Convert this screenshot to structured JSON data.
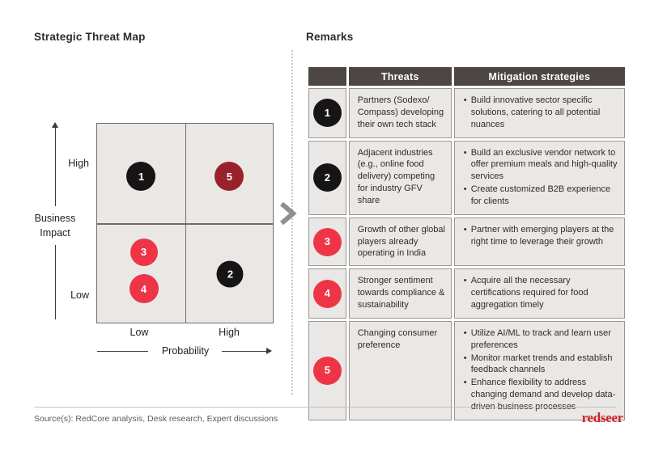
{
  "titles": {
    "left": "Strategic Threat Map",
    "right": "Remarks"
  },
  "matrix": {
    "y_axis": {
      "label": "Business Impact",
      "tick_high": "High",
      "tick_low": "Low"
    },
    "x_axis": {
      "label": "Probability",
      "tick_low": "Low",
      "tick_high": "High"
    },
    "points": [
      {
        "label": "1",
        "color": "#161414",
        "impact": "High",
        "probability": "Low",
        "cx_pct": 25.1,
        "cy_pct": 26.6,
        "size": 36
      },
      {
        "label": "5",
        "color": "#99212b",
        "impact": "High",
        "probability": "High",
        "cx_pct": 75.3,
        "cy_pct": 26.6,
        "size": 36
      },
      {
        "label": "3",
        "color": "#ee3547",
        "impact": "Low",
        "probability": "Low",
        "cx_pct": 26.5,
        "cy_pct": 64.5,
        "size": 34
      },
      {
        "label": "4",
        "color": "#ee3547",
        "impact": "Low",
        "probability": "Low",
        "cx_pct": 26.5,
        "cy_pct": 83.0,
        "size": 36
      },
      {
        "label": "2",
        "color": "#161414",
        "impact": "Low",
        "probability": "High",
        "cx_pct": 75.8,
        "cy_pct": 75.8,
        "size": 33
      }
    ]
  },
  "table": {
    "header": {
      "threats": "Threats",
      "mitigation": "Mitigation strategies"
    },
    "rows": [
      {
        "num": "1",
        "color": "#161414",
        "threat": "Partners (Sodexo/ Compass) developing their own tech stack",
        "mitigations": [
          "Build innovative sector specific solutions, catering to all potential nuances"
        ]
      },
      {
        "num": "2",
        "color": "#161414",
        "threat": "Adjacent industries (e.g., online food delivery) competing for industry GFV share",
        "mitigations": [
          "Build an exclusive vendor network to offer premium meals and high-quality services",
          "Create customized B2B experience for clients"
        ]
      },
      {
        "num": "3",
        "color": "#ee3547",
        "threat": "Growth of other global players already operating in India",
        "mitigations": [
          "Partner with emerging players at the right time to leverage their growth"
        ]
      },
      {
        "num": "4",
        "color": "#ee3547",
        "threat": "Stronger sentiment towards compliance & sustainability",
        "mitigations": [
          "Acquire all the necessary certifications required for food aggregation timely"
        ]
      },
      {
        "num": "5",
        "color": "#ee3547",
        "threat": "Changing consumer preference",
        "mitigations": [
          "Utilize AI/ML to track and learn user preferences",
          "Monitor market trends and establish feedback channels",
          "Enhance flexibility to address changing demand and develop data-driven business processes"
        ]
      }
    ]
  },
  "footer": {
    "source": "Source(s): RedCore analysis, Desk research, Expert discussions",
    "logo_text": "redseer",
    "logo_color": "#d0212a"
  }
}
